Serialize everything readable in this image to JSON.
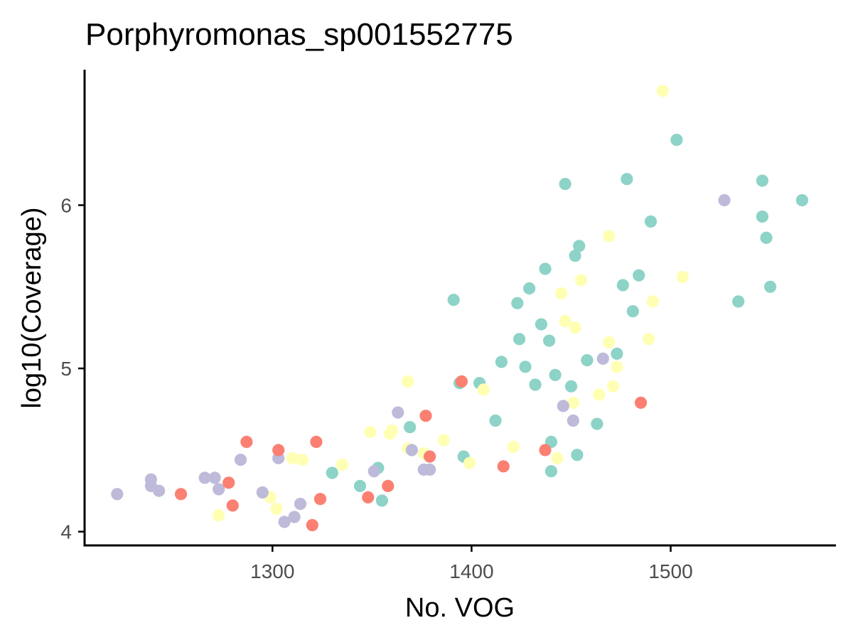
{
  "chart_data": {
    "type": "scatter",
    "title": "Porphyromonas_sp001552775",
    "xlabel": "No. VOG",
    "ylabel": "log10(Coverage)",
    "xlim": [
      1206,
      1583
    ],
    "ylim": [
      3.92,
      6.83
    ],
    "x_ticks": [
      1300,
      1400,
      1500
    ],
    "x_tick_labels": [
      "1300",
      "1400",
      "1500"
    ],
    "y_ticks": [
      4,
      5,
      6
    ],
    "y_tick_labels": [
      "4",
      "5",
      "6"
    ],
    "grid": false,
    "legend": "none",
    "colors": {
      "teal": "#8dd3c7",
      "yellow": "#ffffb3",
      "lavender": "#bebada",
      "salmon": "#fb8072"
    },
    "series": [
      {
        "color": "teal",
        "points": [
          [
            1391,
            5.42
          ],
          [
            1394,
            4.91
          ],
          [
            1396,
            4.46
          ],
          [
            1404,
            4.91
          ],
          [
            1412,
            4.68
          ],
          [
            1415,
            5.04
          ],
          [
            1423,
            5.4
          ],
          [
            1424,
            5.18
          ],
          [
            1427,
            5.01
          ],
          [
            1429,
            5.49
          ],
          [
            1432,
            4.9
          ],
          [
            1435,
            5.27
          ],
          [
            1437,
            5.61
          ],
          [
            1439,
            5.17
          ],
          [
            1440,
            4.55
          ],
          [
            1440,
            4.37
          ],
          [
            1442,
            4.96
          ],
          [
            1447,
            6.13
          ],
          [
            1450,
            4.89
          ],
          [
            1452,
            5.69
          ],
          [
            1453,
            4.47
          ],
          [
            1454,
            5.75
          ],
          [
            1458,
            5.05
          ],
          [
            1463,
            4.66
          ],
          [
            1473,
            5.09
          ],
          [
            1476,
            5.51
          ],
          [
            1478,
            6.16
          ],
          [
            1481,
            5.35
          ],
          [
            1484,
            5.57
          ],
          [
            1490,
            5.9
          ],
          [
            1503,
            6.4
          ],
          [
            1534,
            5.41
          ],
          [
            1546,
            6.15
          ],
          [
            1546,
            5.93
          ],
          [
            1548,
            5.8
          ],
          [
            1550,
            5.5
          ],
          [
            1566,
            6.03
          ],
          [
            1330,
            4.36
          ],
          [
            1344,
            4.28
          ],
          [
            1353,
            4.39
          ],
          [
            1355,
            4.19
          ],
          [
            1369,
            4.64
          ]
        ]
      },
      {
        "color": "yellow",
        "points": [
          [
            1496,
            6.7
          ],
          [
            1469,
            5.81
          ],
          [
            1506,
            5.56
          ],
          [
            1455,
            5.54
          ],
          [
            1445,
            5.46
          ],
          [
            1491,
            5.41
          ],
          [
            1447,
            5.29
          ],
          [
            1452,
            5.25
          ],
          [
            1489,
            5.18
          ],
          [
            1469,
            5.16
          ],
          [
            1473,
            5.01
          ],
          [
            1406,
            4.87
          ],
          [
            1471,
            4.89
          ],
          [
            1464,
            4.84
          ],
          [
            1451,
            4.79
          ],
          [
            1368,
            4.92
          ],
          [
            1386,
            4.56
          ],
          [
            1421,
            4.52
          ],
          [
            1443,
            4.45
          ],
          [
            1399,
            4.42
          ],
          [
            1376,
            4.48
          ],
          [
            1360,
            4.62
          ],
          [
            1359,
            4.6
          ],
          [
            1349,
            4.61
          ],
          [
            1368,
            4.51
          ],
          [
            1335,
            4.41
          ],
          [
            1315,
            4.44
          ],
          [
            1310,
            4.45
          ],
          [
            1299,
            4.21
          ],
          [
            1302,
            4.14
          ],
          [
            1273,
            4.1
          ]
        ]
      },
      {
        "color": "lavender",
        "points": [
          [
            1527,
            6.03
          ],
          [
            1466,
            5.06
          ],
          [
            1446,
            4.77
          ],
          [
            1451,
            4.68
          ],
          [
            1363,
            4.73
          ],
          [
            1370,
            4.5
          ],
          [
            1376,
            4.38
          ],
          [
            1379,
            4.38
          ],
          [
            1351,
            4.37
          ],
          [
            1303,
            4.45
          ],
          [
            1284,
            4.44
          ],
          [
            1266,
            4.33
          ],
          [
            1271,
            4.33
          ],
          [
            1273,
            4.26
          ],
          [
            1295,
            4.24
          ],
          [
            1314,
            4.17
          ],
          [
            1311,
            4.09
          ],
          [
            1306,
            4.06
          ],
          [
            1239,
            4.32
          ],
          [
            1239,
            4.28
          ],
          [
            1243,
            4.25
          ],
          [
            1222,
            4.23
          ]
        ]
      },
      {
        "color": "salmon",
        "points": [
          [
            1395,
            4.92
          ],
          [
            1485,
            4.79
          ],
          [
            1377,
            4.71
          ],
          [
            1379,
            4.46
          ],
          [
            1437,
            4.5
          ],
          [
            1416,
            4.4
          ],
          [
            1358,
            4.28
          ],
          [
            1348,
            4.21
          ],
          [
            1322,
            4.55
          ],
          [
            1324,
            4.2
          ],
          [
            1320,
            4.04
          ],
          [
            1303,
            4.5
          ],
          [
            1287,
            4.55
          ],
          [
            1278,
            4.3
          ],
          [
            1280,
            4.16
          ],
          [
            1254,
            4.23
          ]
        ]
      }
    ]
  }
}
